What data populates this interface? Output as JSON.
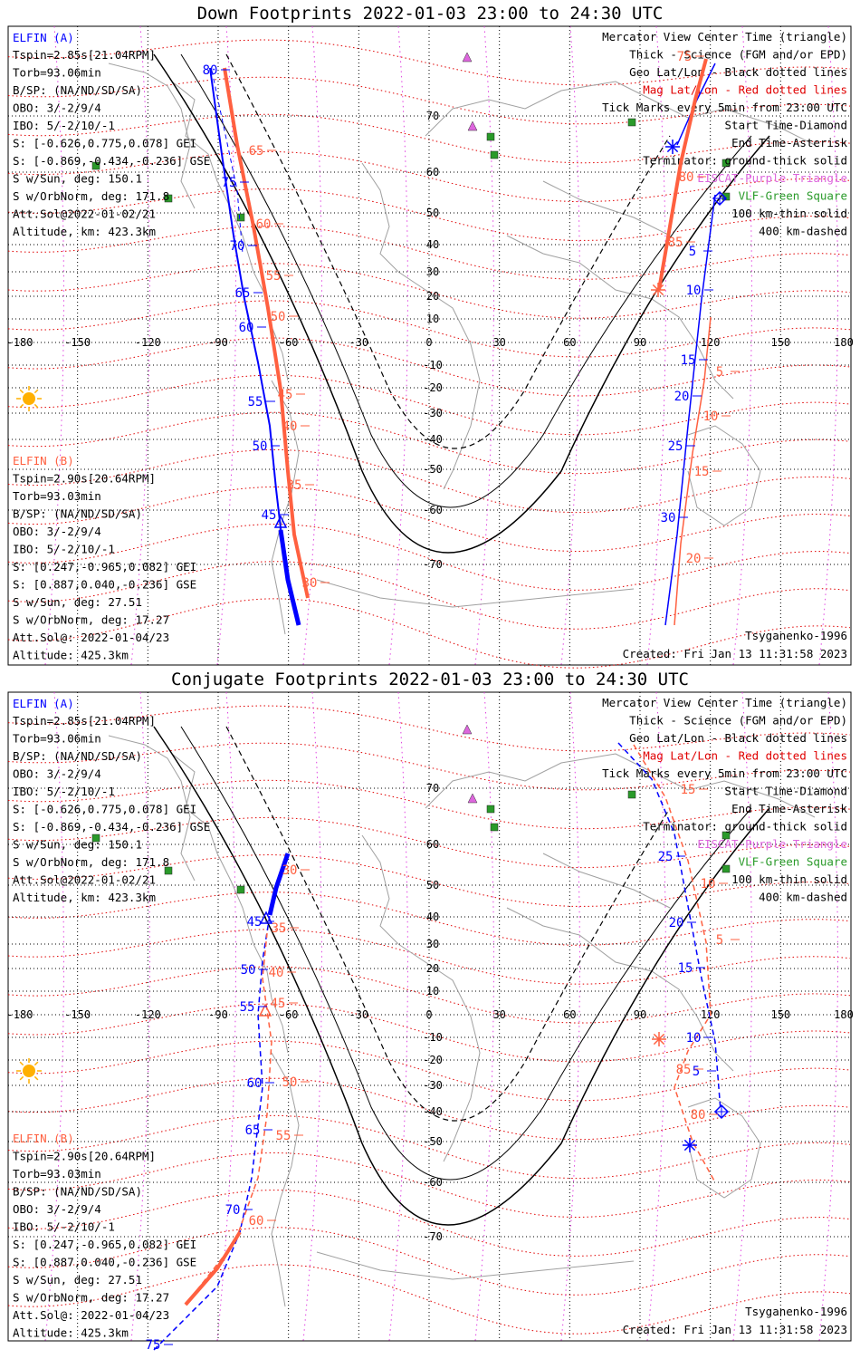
{
  "colors": {
    "blue": "#0000ff",
    "orange": "#ff6040",
    "red": "#e00000",
    "violet": "#dd66dd",
    "green": "#2a9a2a",
    "coast": "#a0a0a0",
    "magenta_grid": "#e040e0"
  },
  "panels": [
    {
      "id": "down",
      "title": "Down Footprints 2022-01-03 23:00 to 24:30 UTC",
      "elfin_a": {
        "title": "ELFIN (A)",
        "lines": [
          "Tspin=2.85s[21.04RPM]",
          "Torb=93.06min",
          "B/SP: (NA/ND/SD/SA)",
          "OBO: 3/-2/9/4",
          "IBO: 5/-2/10/-1",
          "S: [-0.626,0.775,0.078] GEI",
          "S: [-0.869,-0.434,-0.236] GSE",
          "S w/Sun, deg: 150.1",
          "S w/OrbNorm, deg: 171.8",
          "Att.Sol@2022-01-02/21",
          "Altitude, km: 423.3km"
        ]
      },
      "elfin_b": {
        "title": "ELFIN (B)",
        "lines": [
          "Tspin=2.90s[20.64RPM]",
          "Torb=93.03min",
          "B/SP: (NA/ND/SD/SA)",
          "OBO: 3/-2/9/4",
          "IBO: 5/-2/10/-1",
          "S: [0.247,-0.965,0.082] GEI",
          "S: [0.887,0.040,-0.236] GSE",
          "S w/Sun, deg: 27.51",
          "S w/OrbNorm, deg: 17.27",
          "Att.Sol@: 2022-01-04/23",
          "Altitude: 425.3km"
        ]
      },
      "legend": [
        "Mercator View Center Time (triangle)",
        "Thick - Science (FGM and/or EPD)",
        "Geo Lat/Lon - Black dotted lines",
        "Mag Lat/Lon - Red dotted lines",
        "Tick Marks every 5min from 23:00 UTC",
        "Start Time-Diamond",
        "End Time-Asterisk",
        "Terminator: ground-thick solid",
        "EISCAT-Purple Triangle",
        "VLF-Green Square",
        "100 km-thin solid",
        "400 km-dashed"
      ],
      "model": "Tsyganenko-1996",
      "created": "Created: Fri Jan 13 11:31:58 2023"
    },
    {
      "id": "conjugate",
      "title": "Conjugate Footprints 2022-01-03 23:00 to 24:30 UTC",
      "elfin_a": {
        "title": "ELFIN (A)",
        "lines": [
          "Tspin=2.85s[21.04RPM]",
          "Torb=93.06min",
          "B/SP: (NA/ND/SD/SA)",
          "OBO: 3/-2/9/4",
          "IBO: 5/-2/10/-1",
          "S: [-0.626,0.775,0.078] GEI",
          "S: [-0.869,-0.434,-0.236] GSE",
          "S w/Sun, deg: 150.1",
          "S w/OrbNorm, deg: 171.8",
          "Att.Sol@2022-01-02/21",
          "Altitude, km: 423.3km"
        ]
      },
      "elfin_b": {
        "title": "ELFIN (B)",
        "lines": [
          "Tspin=2.90s[20.64RPM]",
          "Torb=93.03min",
          "B/SP: (NA/ND/SD/SA)",
          "OBO: 3/-2/9/4",
          "IBO: 5/-2/10/-1",
          "S: [0.247,-0.965,0.082] GEI",
          "S: [0.887,0.040,-0.236] GSE",
          "S w/Sun, deg: 27.51",
          "S w/OrbNorm, deg: 17.27",
          "Att.Sol@: 2022-01-04/23",
          "Altitude: 425.3km"
        ]
      },
      "legend": [
        "Mercator View Center Time (triangle)",
        "Thick - Science (FGM and/or EPD)",
        "Geo Lat/Lon - Black dotted lines",
        "Mag Lat/Lon - Red dotted lines",
        "Tick Marks every 5min from 23:00 UTC",
        "Start Time-Diamond",
        "End Time-Asterisk",
        "Terminator: ground-thick solid",
        "EISCAT-Purple Triangle",
        "VLF-Green Square",
        "100 km-thin solid",
        "400 km-dashed"
      ],
      "model": "Tsyganenko-1996",
      "created": "Created: Fri Jan 13 11:31:58 2023"
    }
  ],
  "lon_labels": [
    "-180",
    "-150",
    "-120",
    "-90",
    "-60",
    "-30",
    "0",
    "30",
    "60",
    "90",
    "120",
    "150",
    "180"
  ],
  "lat_labels": [
    "70",
    "60",
    "50",
    "40",
    "30",
    "20",
    "10",
    "0",
    "-10",
    "-20",
    "-30",
    "-40",
    "-50",
    "-60",
    "-70"
  ],
  "down_ticks": {
    "a": [
      [
        "80",
        [
          232,
          82
        ]
      ],
      [
        "75",
        [
          253,
          206
        ]
      ],
      [
        "70",
        [
          262,
          276
        ]
      ],
      [
        "65",
        [
          268,
          328
        ]
      ],
      [
        "60",
        [
          272,
          366
        ]
      ],
      [
        "55",
        [
          282,
          448
        ]
      ],
      [
        "50",
        [
          287,
          497
        ]
      ],
      [
        "45",
        [
          297,
          573
        ]
      ],
      [
        "5",
        [
          765,
          282
        ]
      ],
      [
        "10",
        [
          766,
          325
        ]
      ],
      [
        "15",
        [
          760,
          402
        ]
      ],
      [
        "20",
        [
          753,
          442
        ]
      ],
      [
        "25",
        [
          746,
          497
        ]
      ],
      [
        "30",
        [
          738,
          576
        ]
      ]
    ],
    "b": [
      [
        "65",
        [
          283,
          171
        ]
      ],
      [
        "60",
        [
          291,
          252
        ]
      ],
      [
        "55",
        [
          302,
          309
        ]
      ],
      [
        "50",
        [
          307,
          354
        ]
      ],
      [
        "45",
        [
          315,
          440
        ]
      ],
      [
        "40",
        [
          320,
          475
        ]
      ],
      [
        "35",
        [
          325,
          540
        ]
      ],
      [
        "30",
        [
          342,
          648
        ]
      ],
      [
        "75",
        [
          756,
          67
        ]
      ],
      [
        "80",
        [
          758,
          200
        ]
      ],
      [
        "85",
        [
          746,
          272
        ]
      ],
      [
        "5",
        [
          795,
          415
        ]
      ],
      [
        "10",
        [
          785,
          464
        ]
      ],
      [
        "15",
        [
          775,
          525
        ]
      ],
      [
        "20",
        [
          766,
          621
        ]
      ]
    ]
  },
  "conj_ticks": {
    "a": [
      [
        "45",
        [
          281,
          1022
        ]
      ],
      [
        "50",
        [
          274,
          1075
        ]
      ],
      [
        "55",
        [
          273,
          1116
        ]
      ],
      [
        "60",
        [
          281,
          1200
        ]
      ],
      [
        "65",
        [
          279,
          1252
        ]
      ],
      [
        "70",
        [
          257,
          1340
        ]
      ],
      [
        "75",
        [
          169,
          1489
        ]
      ],
      [
        "25",
        [
          735,
          950
        ]
      ],
      [
        "20",
        [
          747,
          1023
        ]
      ],
      [
        "15",
        [
          757,
          1073
        ]
      ],
      [
        "10",
        [
          766,
          1150
        ]
      ],
      [
        "5",
        [
          769,
          1187
        ]
      ]
    ],
    "b": [
      [
        "30",
        [
          320,
          965
        ]
      ],
      [
        "35",
        [
          308,
          1029
        ]
      ],
      [
        "40",
        [
          305,
          1078
        ]
      ],
      [
        "45",
        [
          307,
          1112
        ]
      ],
      [
        "50",
        [
          320,
          1199
        ]
      ],
      [
        "55",
        [
          313,
          1258
        ]
      ],
      [
        "60",
        [
          283,
          1352
        ]
      ],
      [
        "15",
        [
          760,
          876
        ]
      ],
      [
        "10",
        [
          782,
          980
        ]
      ],
      [
        "5",
        [
          795,
          1042
        ]
      ],
      [
        "85",
        [
          755,
          1185
        ]
      ],
      [
        "80",
        [
          771,
          1235
        ]
      ]
    ]
  }
}
